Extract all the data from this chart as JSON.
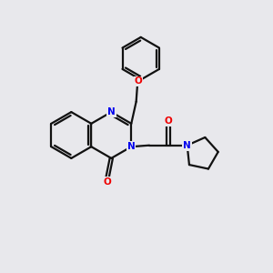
{
  "background_color": "#e8e8ec",
  "bond_color": "#111111",
  "nitrogen_color": "#0000ee",
  "oxygen_color": "#ee0000",
  "line_width": 1.6,
  "dbl_sep": 0.055,
  "fig_size": [
    3.0,
    3.0
  ],
  "dpi": 100,
  "xlim": [
    0,
    10
  ],
  "ylim": [
    0,
    10
  ]
}
